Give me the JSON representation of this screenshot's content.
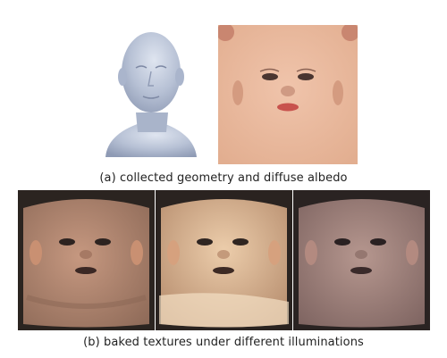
{
  "captions": {
    "a": "(a) collected geometry and diffuse albedo",
    "b": "(b) baked textures under different illuminations"
  },
  "icons": {
    "geometry": "head-mesh-render",
    "albedo": "face-uv-albedo-texture",
    "baked": [
      "baked-texture-warm",
      "baked-texture-bright",
      "baked-texture-cool"
    ]
  },
  "colors": {
    "mesh": "#b9c3d6",
    "albedo_bg": "#eab79a",
    "baked_warm": "#b58a72",
    "baked_bright": "#e3c2a2",
    "baked_cool": "#9d7f7a"
  }
}
